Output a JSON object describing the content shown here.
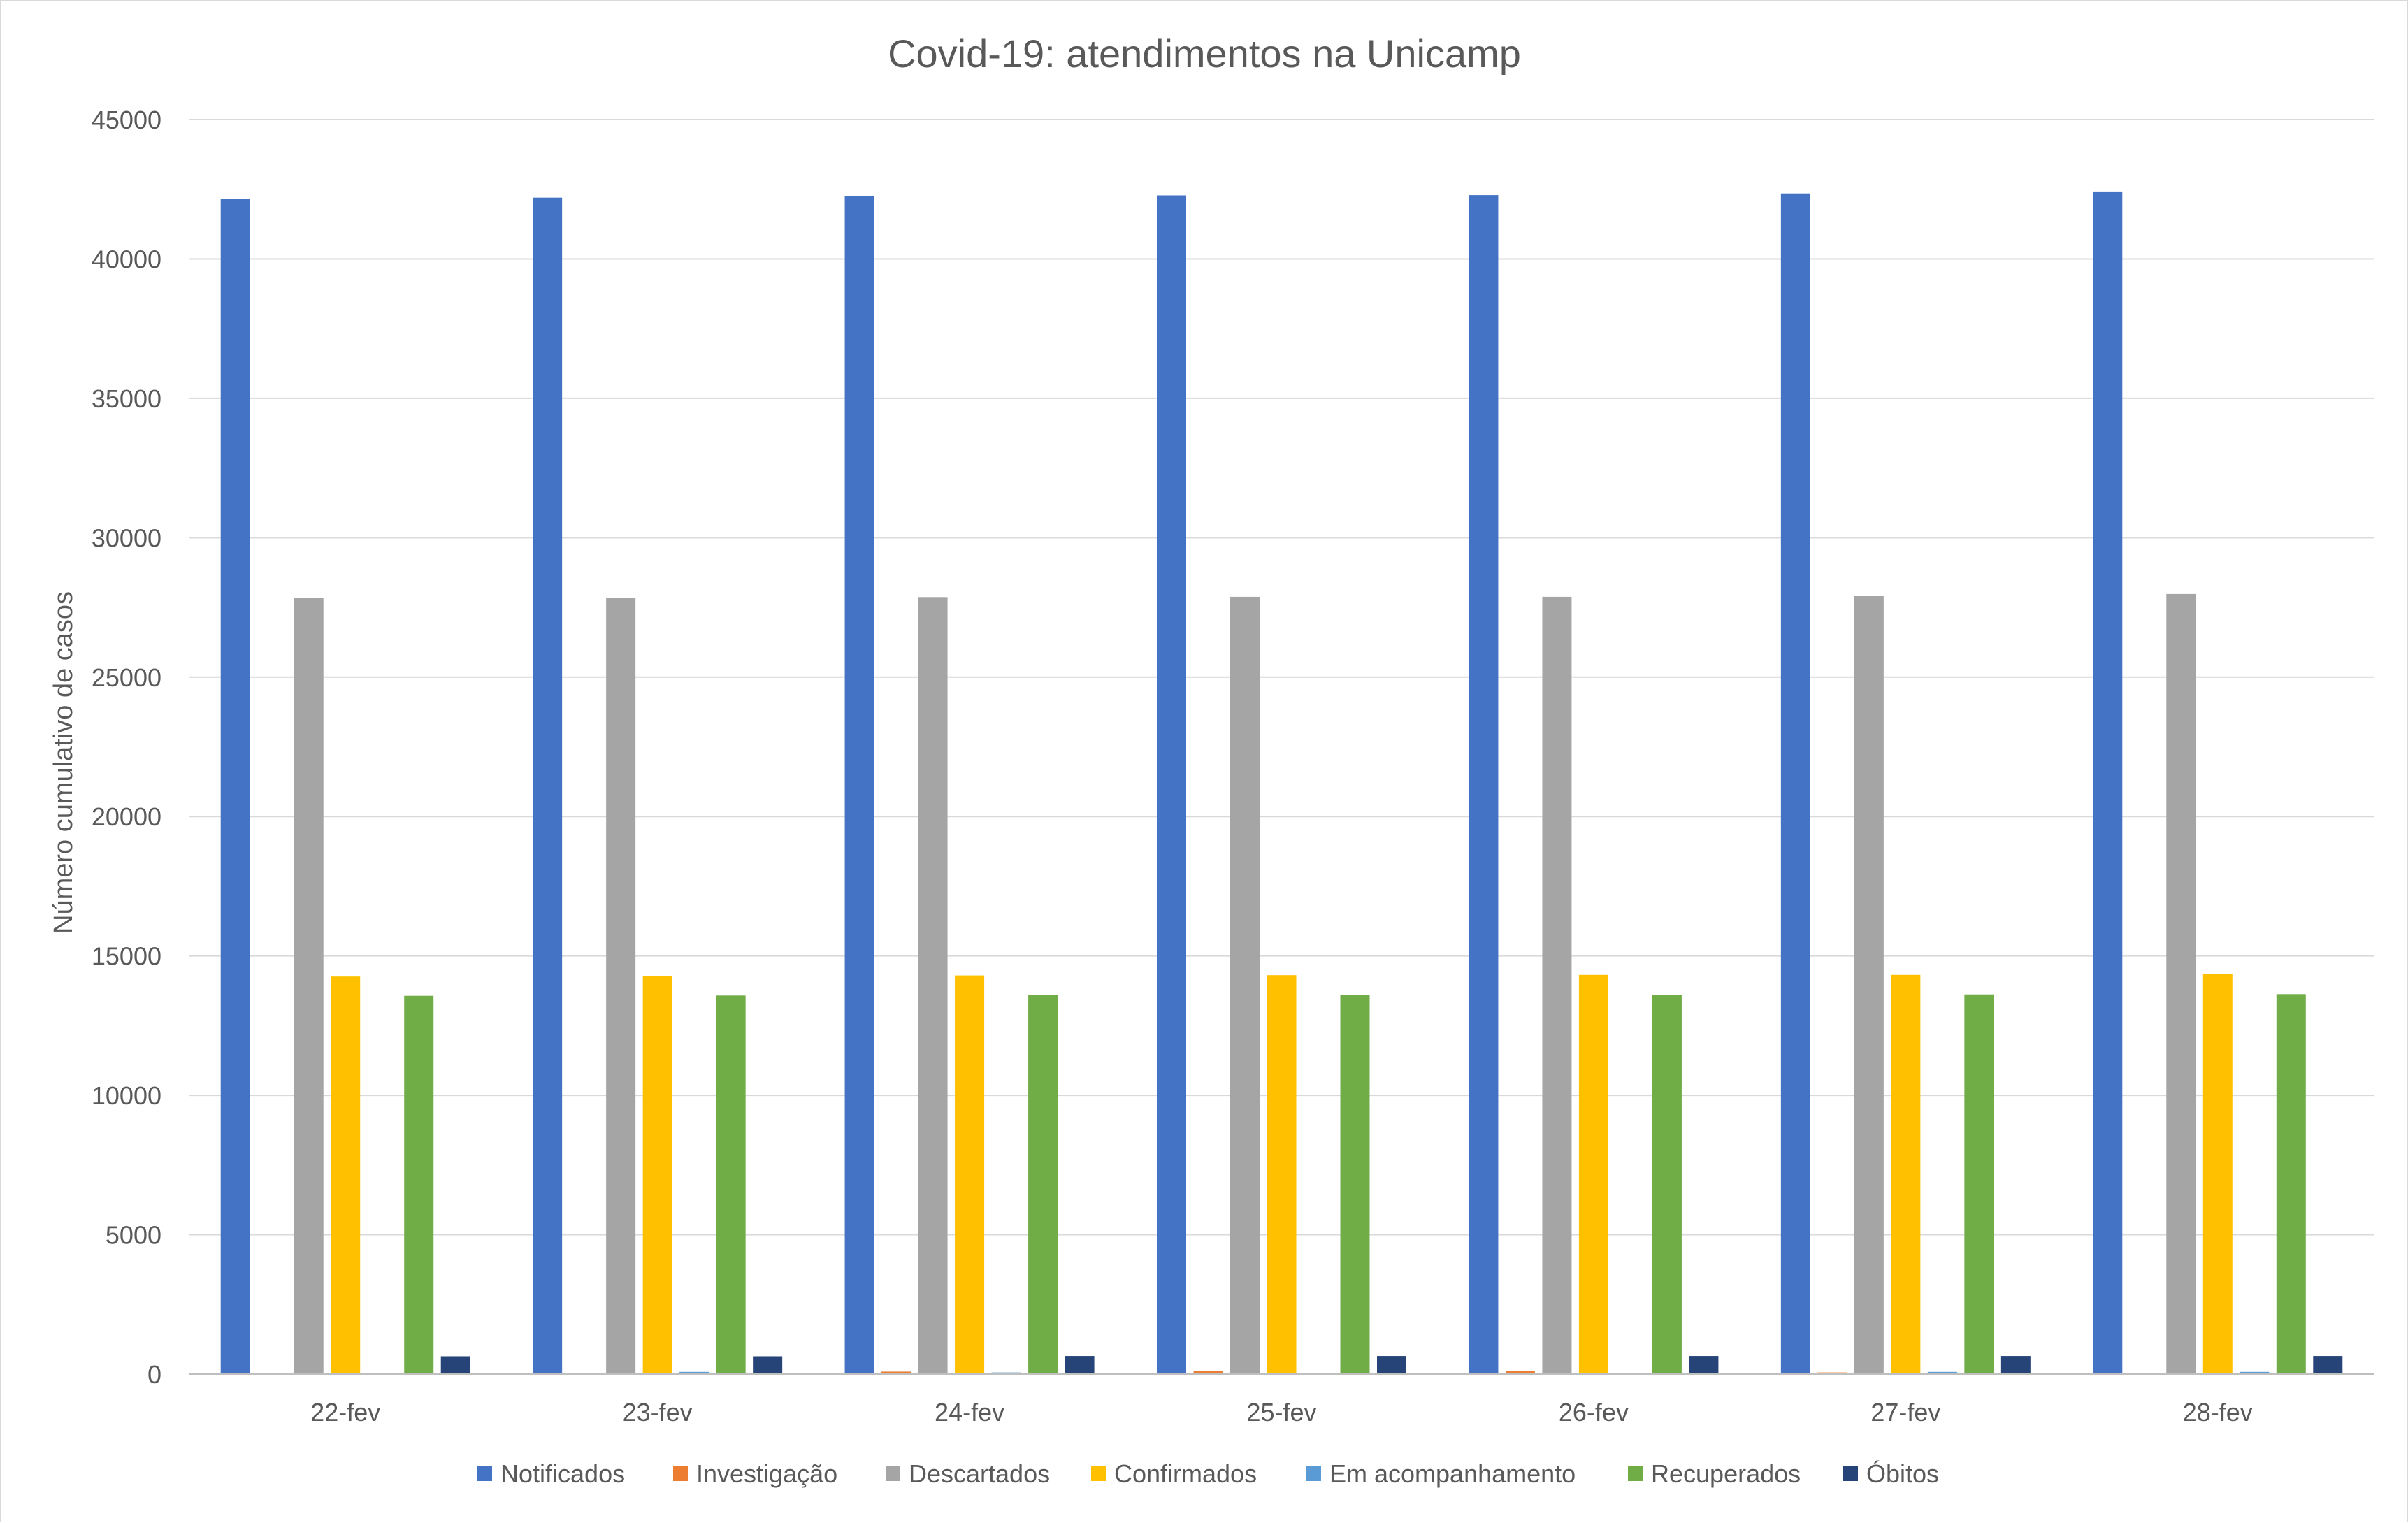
{
  "chart_data": {
    "type": "bar",
    "title": "Covid-19: atendimentos na Unicamp",
    "xlabel": "",
    "ylabel": "Número cumulativo de casos",
    "ylim": [
      0,
      45000
    ],
    "yticks": [
      0,
      5000,
      10000,
      15000,
      20000,
      25000,
      30000,
      35000,
      40000,
      45000
    ],
    "grid": true,
    "legend_position": "bottom",
    "categories": [
      "22-fev",
      "23-fev",
      "24-fev",
      "25-fev",
      "26-fev",
      "27-fev",
      "28-fev"
    ],
    "series": [
      {
        "name": "Notificados",
        "color": "#4472C4",
        "values": [
          42150,
          42200,
          42250,
          42280,
          42290,
          42350,
          42420
        ]
      },
      {
        "name": "Investigação",
        "color": "#ED7D31",
        "values": [
          30,
          40,
          90,
          110,
          100,
          60,
          40
        ]
      },
      {
        "name": "Descartados",
        "color": "#A5A5A5",
        "values": [
          27830,
          27840,
          27870,
          27880,
          27880,
          27920,
          27980
        ]
      },
      {
        "name": "Confirmados",
        "color": "#FFC000",
        "values": [
          14260,
          14290,
          14300,
          14310,
          14320,
          14320,
          14360
        ]
      },
      {
        "name": "Em acompanhamento",
        "color": "#5B9BD5",
        "values": [
          50,
          80,
          60,
          40,
          50,
          80,
          80
        ]
      },
      {
        "name": "Recuperados",
        "color": "#70AD47",
        "values": [
          13570,
          13580,
          13590,
          13600,
          13600,
          13620,
          13630
        ]
      },
      {
        "name": "Óbitos",
        "color": "#264478",
        "values": [
          640,
          640,
          650,
          650,
          650,
          650,
          650
        ]
      }
    ]
  }
}
